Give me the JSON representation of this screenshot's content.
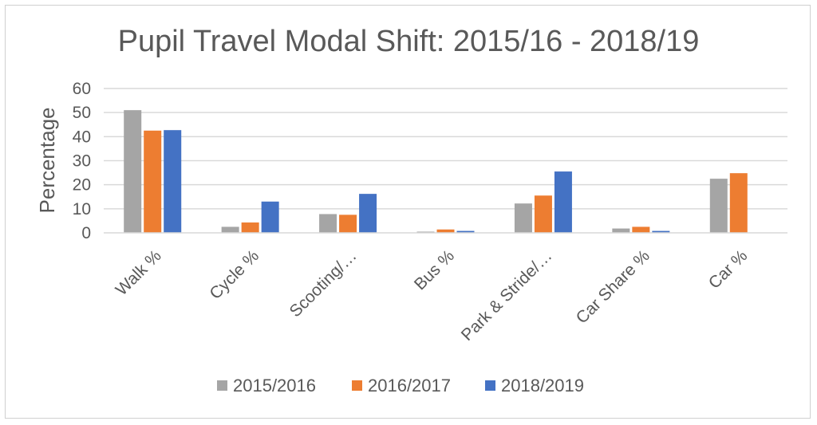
{
  "chart_data": {
    "type": "bar",
    "title": "Pupil Travel Modal Shift: 2015/16 - 2018/19",
    "xlabel": "",
    "ylabel": "Percentage",
    "ylim": [
      0,
      60
    ],
    "yticks": [
      0,
      10,
      20,
      30,
      40,
      50,
      60
    ],
    "grid": true,
    "legend_position": "bottom",
    "categories": [
      "Walk %",
      "Cycle %",
      "Scooting/…",
      "Bus %",
      "Park & Stride/…",
      "Car Share %",
      "Car %"
    ],
    "series": [
      {
        "name": "2015/2016",
        "color": "#a5a5a5",
        "values": [
          51,
          2.5,
          7.8,
          0.5,
          12.2,
          1.8,
          22.5
        ]
      },
      {
        "name": "2016/2017",
        "color": "#ed7d31",
        "values": [
          42.5,
          4.3,
          7.5,
          1.4,
          15.5,
          2.5,
          24.8
        ]
      },
      {
        "name": "2018/2019",
        "color": "#4472c4",
        "values": [
          42.7,
          13,
          16.2,
          0.8,
          25.5,
          0.8,
          0
        ]
      }
    ]
  }
}
